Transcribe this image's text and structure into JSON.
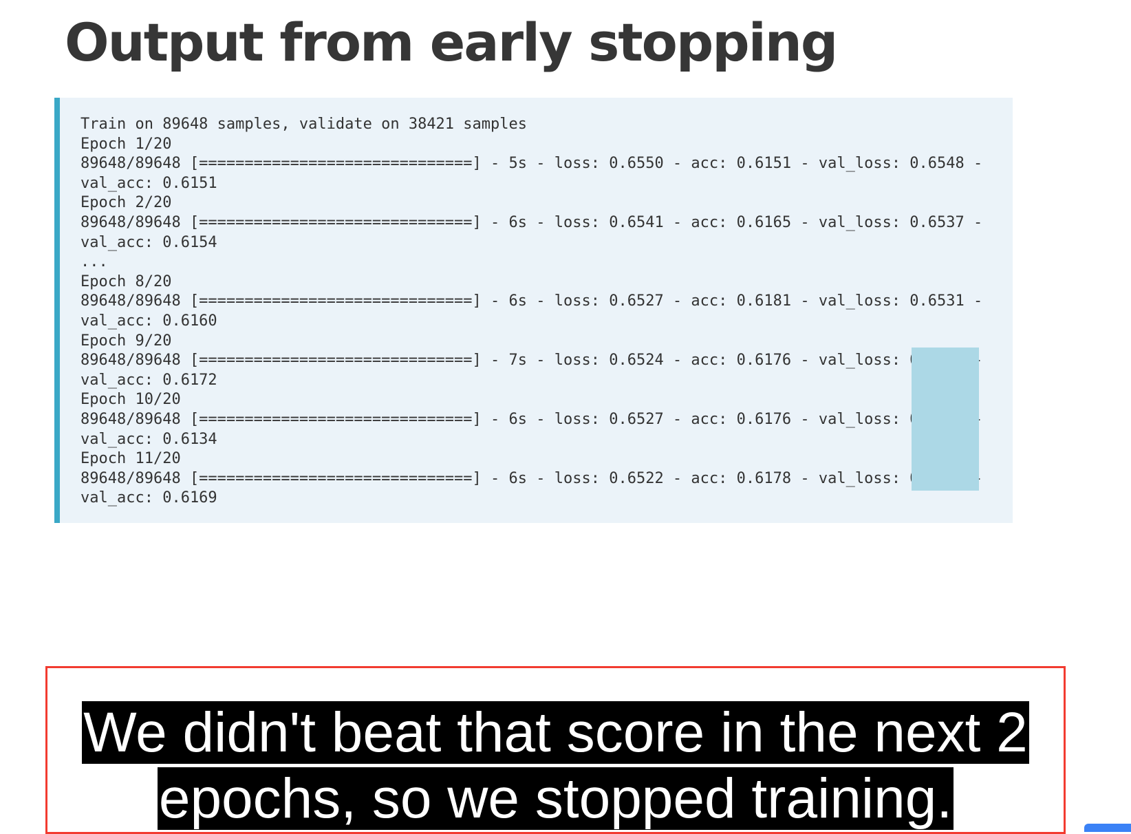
{
  "slide": {
    "title": "Output from early stopping"
  },
  "code": {
    "lines": [
      "Train on 89648 samples, validate on 38421 samples",
      "Epoch 1/20",
      "89648/89648 [==============================] - 5s - loss: 0.6550 - acc: 0.6151 - val_loss: 0.6548 -",
      "val_acc: 0.6151",
      "Epoch 2/20",
      "89648/89648 [==============================] - 6s - loss: 0.6541 - acc: 0.6165 - val_loss: 0.6537 -",
      "val_acc: 0.6154",
      "...",
      "Epoch 8/20",
      "89648/89648 [==============================] - 6s - loss: 0.6527 - acc: 0.6181 - val_loss: 0.6531 -",
      "val_acc: 0.6160",
      "Epoch 9/20",
      "89648/89648 [==============================] - 7s - loss: 0.6524 - acc: 0.6176 - val_loss: 0.6513 -",
      "val_acc: 0.6172",
      "Epoch 10/20",
      "89648/89648 [==============================] - 6s - loss: 0.6527 - acc: 0.6176 - val_loss: 0.6549 -",
      "val_acc: 0.6134",
      "Epoch 11/20",
      "89648/89648 [==============================] - 6s - loss: 0.6522 - acc: 0.6178 - val_loss: 0.6517 -",
      "val_acc: 0.6169"
    ],
    "highlighted_values": [
      "0.6513",
      "0.6549",
      "0.6517"
    ]
  },
  "caption": {
    "text": "We didn't beat that score in the next 2 epochs, so we stopped training."
  },
  "colors": {
    "title": "#363636",
    "code_background": "#ebf3f9",
    "code_border": "#3aa8c6",
    "highlight": "#acd8e6",
    "caption_border": "#f23b30",
    "caption_background": "#000000",
    "caption_text": "#ffffff"
  }
}
